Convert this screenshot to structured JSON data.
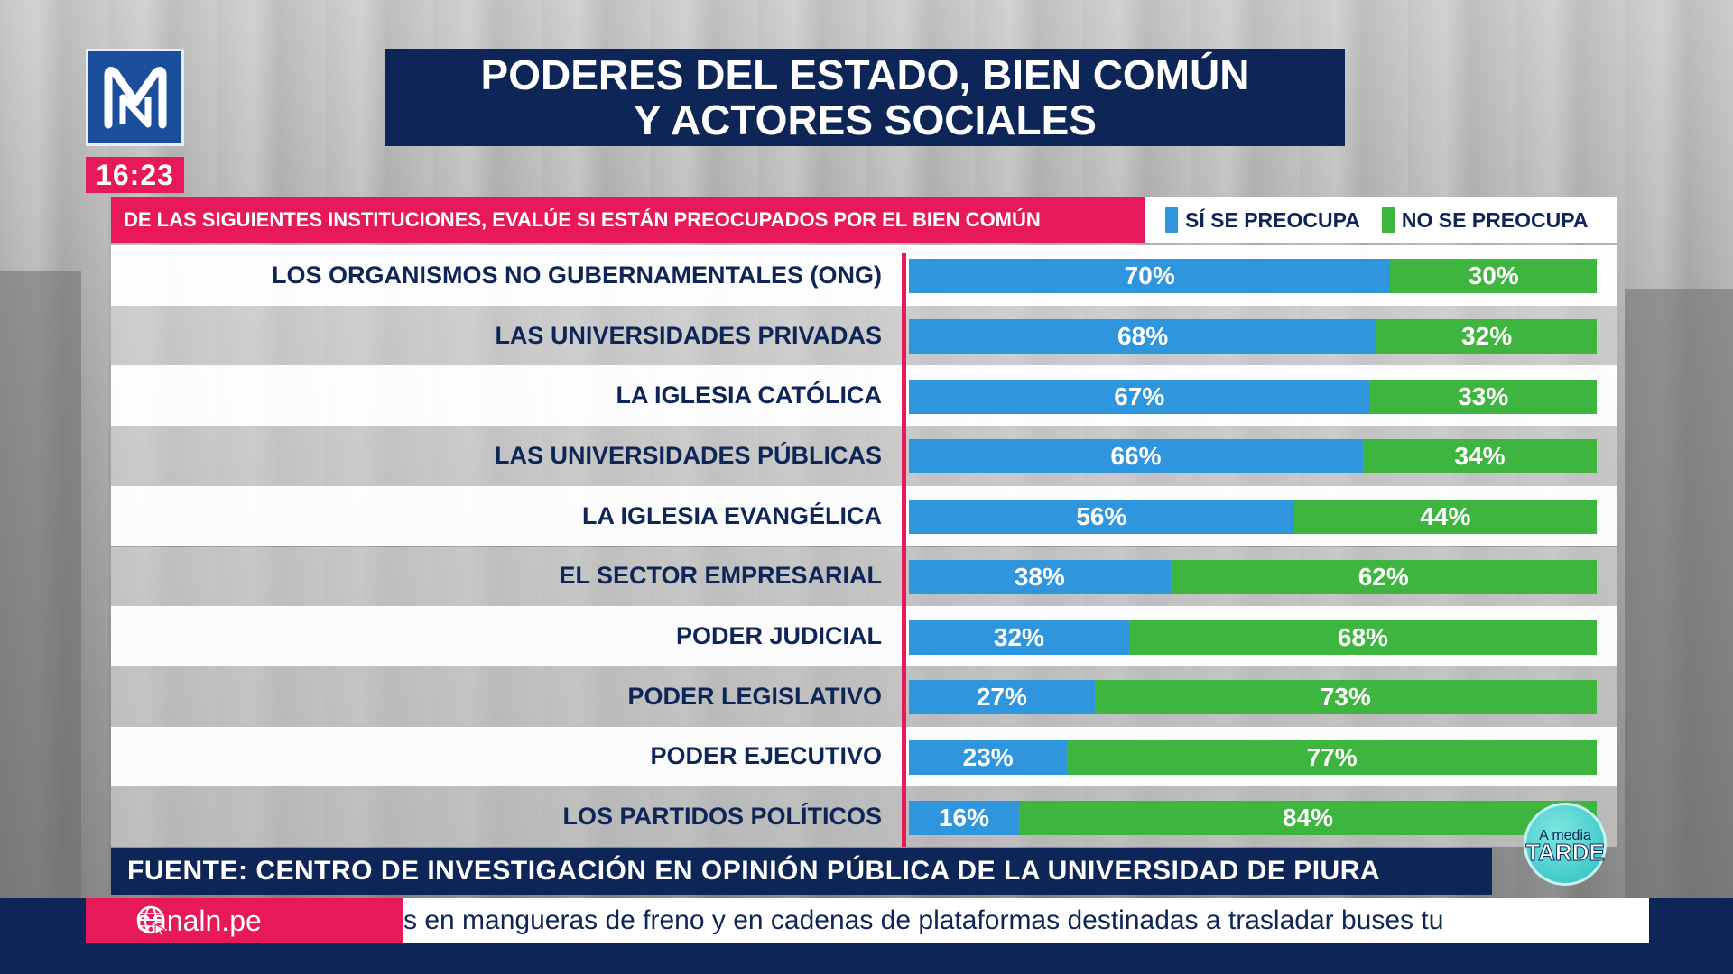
{
  "header": {
    "title_line1": "PODERES DEL ESTADO, BIEN COMÚN",
    "title_line2": "Y ACTORES SOCIALES",
    "clock": "16:23"
  },
  "question": "DE LAS SIGUIENTES INSTITUCIONES, EVALÚE SI ESTÁN PREOCUPADOS POR EL BIEN COMÚN",
  "colors": {
    "yes": "#2f96de",
    "no": "#3db53e",
    "accent": "#e8195a",
    "navy": "#0e2657"
  },
  "chart_data": {
    "type": "bar",
    "stacked": true,
    "orientation": "horizontal",
    "categories": [
      "LOS ORGANISMOS NO GUBERNAMENTALES (ONG)",
      "LAS UNIVERSIDADES PRIVADAS",
      "LA IGLESIA CATÓLICA",
      "LAS UNIVERSIDADES PÚBLICAS",
      "LA IGLESIA EVANGÉLICA",
      "EL SECTOR EMPRESARIAL",
      "PODER JUDICIAL",
      "PODER LEGISLATIVO",
      "PODER EJECUTIVO",
      "LOS PARTIDOS POLÍTICOS"
    ],
    "series": [
      {
        "name": "SÍ SE PREOCUPA",
        "values": [
          70,
          68,
          67,
          66,
          56,
          38,
          32,
          27,
          23,
          16
        ],
        "labels": [
          "70%",
          "68%",
          "67%",
          "66%",
          "56%",
          "38%",
          "32%",
          "27%",
          "23%",
          "16%"
        ]
      },
      {
        "name": "NO SE PREOCUPA",
        "values": [
          30,
          32,
          33,
          34,
          44,
          62,
          68,
          73,
          77,
          84
        ],
        "labels": [
          "30%",
          "32%",
          "33%",
          "34%",
          "44%",
          "62%",
          "68%",
          "73%",
          "77%",
          "84%"
        ]
      }
    ],
    "xlim": [
      0,
      100
    ],
    "legend": "top-right"
  },
  "source": "FUENTE: CENTRO DE INVESTIGACIÓN EN OPINIÓN PÚBLICA DE LA UNIVERSIDAD DE PIURA",
  "badge": {
    "line1": "A media",
    "line2": "TARDE"
  },
  "footer": {
    "site": "canaln.pe",
    "ticker": "s en mangueras de freno y en cadenas de plataformas destinadas a trasladar buses tu"
  }
}
